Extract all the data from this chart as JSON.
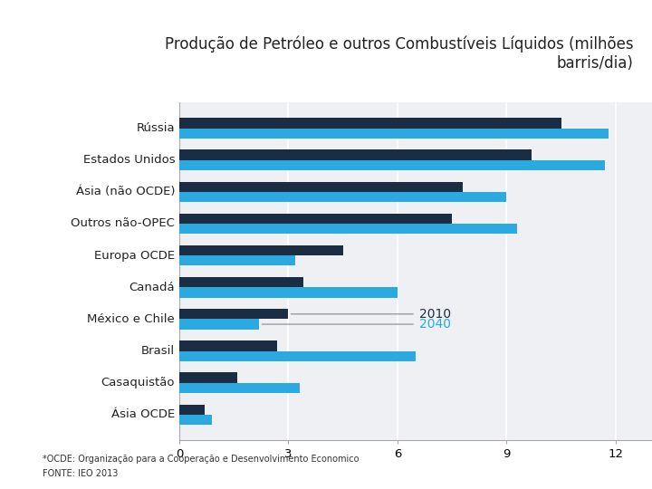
{
  "title": "Produção de Petróleo e outros Combustíveis Líquidos (milhões\nbarris/dia)",
  "categories": [
    "Rússia",
    "Estados Unidos",
    "Ásia (não OCDE)",
    "Outros não-OPEC",
    "Europa OCDE",
    "Canadá",
    "México e Chile",
    "Brasil",
    "Casaquistão",
    "Ásia OCDE"
  ],
  "values_2010": [
    10.5,
    9.7,
    7.8,
    7.5,
    4.5,
    3.4,
    3.0,
    2.7,
    1.6,
    0.7
  ],
  "values_2040": [
    11.8,
    11.7,
    9.0,
    9.3,
    3.2,
    6.0,
    2.2,
    6.5,
    3.3,
    0.9
  ],
  "color_2010": "#1b2d42",
  "color_2040": "#2baae1",
  "xlim": [
    0,
    13
  ],
  "xticks": [
    0,
    3,
    6,
    9,
    12
  ],
  "legend_2010": "2010",
  "legend_2040": "2040",
  "footnote1": "*OCDE: Organização para a Cooperação e Desenvolvimento Economico",
  "footnote2": "FONTE: IEO 2013",
  "bg_outer": "#ffffff",
  "bg_title": "#f0f0f0",
  "bg_plot": "#eef0f4",
  "bg_left_strip": "#7a8fab",
  "bg_chart_left": "#d6dce6",
  "title_color": "#222222",
  "title_fontsize": 12,
  "label_fontsize": 9.5,
  "tick_fontsize": 9.5,
  "footnote_fontsize": 7
}
